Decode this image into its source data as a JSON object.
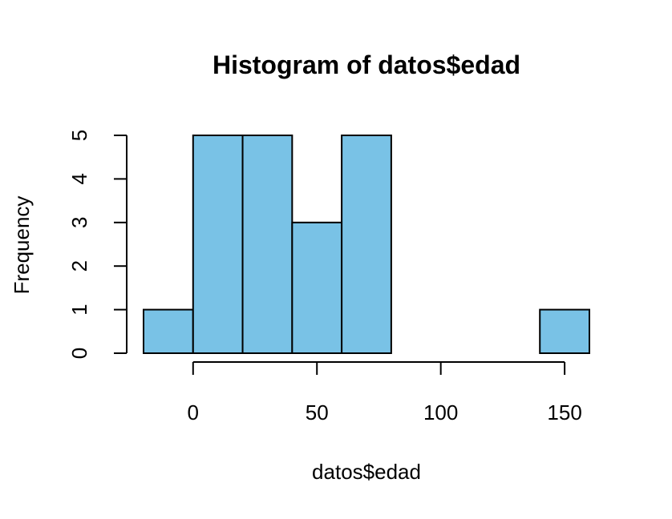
{
  "chart_data": {
    "type": "bar",
    "title": "Histogram of datos$edad",
    "xlabel": "datos$edad",
    "ylabel": "Frequency",
    "bar_color": "#79C2E6",
    "bins": [
      {
        "start": -20,
        "end": 0,
        "count": 1
      },
      {
        "start": 0,
        "end": 20,
        "count": 5
      },
      {
        "start": 20,
        "end": 40,
        "count": 5
      },
      {
        "start": 40,
        "end": 60,
        "count": 3
      },
      {
        "start": 60,
        "end": 80,
        "count": 5
      },
      {
        "start": 80,
        "end": 100,
        "count": 0
      },
      {
        "start": 100,
        "end": 120,
        "count": 0
      },
      {
        "start": 120,
        "end": 140,
        "count": 0
      },
      {
        "start": 140,
        "end": 160,
        "count": 1
      }
    ],
    "xlim": [
      -20,
      160
    ],
    "ylim": [
      0,
      5
    ],
    "x_ticks": [
      0,
      50,
      100,
      150
    ],
    "y_ticks": [
      0,
      1,
      2,
      3,
      4,
      5
    ],
    "grid": false,
    "legend": "none"
  }
}
